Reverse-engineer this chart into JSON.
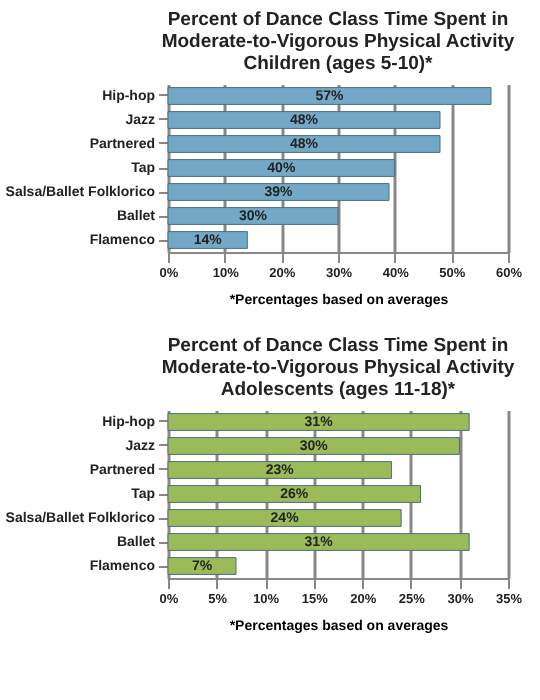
{
  "chart_data": [
    {
      "type": "bar",
      "orientation": "horizontal",
      "title": "Percent of Dance Class Time Spent in\nModerate-to-Vigorous Physical Activity\nChildren (ages 5-10)*",
      "categories": [
        "Hip-hop",
        "Jazz",
        "Partnered",
        "Tap",
        "Salsa/Ballet Folklorico",
        "Ballet",
        "Flamenco"
      ],
      "values": [
        57,
        48,
        48,
        40,
        39,
        30,
        14
      ],
      "value_labels": [
        "57%",
        "48%",
        "48%",
        "40%",
        "39%",
        "30%",
        "14%"
      ],
      "color": "#73a9c7",
      "xlim": [
        0,
        60
      ],
      "xticks": [
        {
          "value": 0,
          "label": "0%"
        },
        {
          "value": 10,
          "label": "10%"
        },
        {
          "value": 20,
          "label": "20%"
        },
        {
          "value": 30,
          "label": "30%"
        },
        {
          "value": 40,
          "label": "40%"
        },
        {
          "value": 50,
          "label": "50%"
        },
        {
          "value": 60,
          "label": "60%"
        }
      ],
      "grid": "x",
      "annotations": [
        "*Percentages based on averages"
      ]
    },
    {
      "type": "bar",
      "orientation": "horizontal",
      "title": "Percent of Dance Class Time Spent in\nModerate-to-Vigorous Physical Activity\nAdolescents (ages 11-18)*",
      "categories": [
        "Hip-hop",
        "Jazz",
        "Partnered",
        "Tap",
        "Salsa/Ballet Folklorico",
        "Ballet",
        "Flamenco"
      ],
      "values": [
        31,
        30,
        23,
        26,
        24,
        31,
        7
      ],
      "value_labels": [
        "31%",
        "30%",
        "23%",
        "26%",
        "24%",
        "31%",
        "7%"
      ],
      "color": "#9bbb59",
      "xlim": [
        0,
        35
      ],
      "xticks": [
        {
          "value": 0,
          "label": "0%"
        },
        {
          "value": 5,
          "label": "5%"
        },
        {
          "value": 10,
          "label": "10%"
        },
        {
          "value": 15,
          "label": "15%"
        },
        {
          "value": 20,
          "label": "20%"
        },
        {
          "value": 25,
          "label": "25%"
        },
        {
          "value": 30,
          "label": "30%"
        },
        {
          "value": 35,
          "label": "35%"
        }
      ],
      "grid": "x",
      "annotations": [
        "*Percentages based on averages"
      ]
    }
  ]
}
